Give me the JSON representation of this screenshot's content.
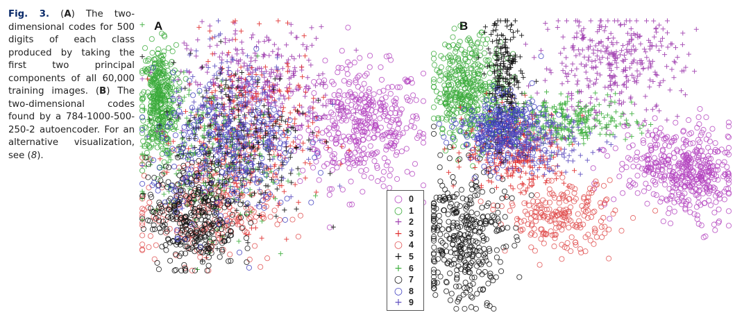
{
  "caption": {
    "label": "Fig. 3.",
    "segments": [
      {
        "t": "(",
        "s": "n"
      },
      {
        "t": "A",
        "s": "b"
      },
      {
        "t": ") The two-dimensional codes for 500 digits of each class produced by taking the first two principal components of all 60,000 training images. (",
        "s": "n"
      },
      {
        "t": "B",
        "s": "b"
      },
      {
        "t": ") The two-dimensional codes found by a 784-1000-500-250-2 autoencoder. For an alternative visualization, see (",
        "s": "n"
      },
      {
        "t": "8",
        "s": "i"
      },
      {
        "t": ").",
        "s": "n"
      }
    ]
  },
  "panels": {
    "a_label": "A",
    "b_label": "B"
  },
  "legend": {
    "items": [
      {
        "label": "0",
        "marker": "circle",
        "color": "#b444c0"
      },
      {
        "label": "1",
        "marker": "circle",
        "color": "#3aaa3a"
      },
      {
        "label": "2",
        "marker": "plus",
        "color": "#a040b0"
      },
      {
        "label": "3",
        "marker": "plus",
        "color": "#e03030"
      },
      {
        "label": "4",
        "marker": "circle",
        "color": "#e05050"
      },
      {
        "label": "5",
        "marker": "plus",
        "color": "#111111"
      },
      {
        "label": "6",
        "marker": "plus",
        "color": "#40b040"
      },
      {
        "label": "7",
        "marker": "circle",
        "color": "#111111"
      },
      {
        "label": "8",
        "marker": "circle",
        "color": "#4040c0"
      },
      {
        "label": "9",
        "marker": "plus",
        "color": "#6050c0"
      }
    ]
  },
  "chart_data": [
    {
      "type": "scatter",
      "panel": "A",
      "title": "",
      "xlabel": "",
      "ylabel": "",
      "grid": false,
      "series": [
        {
          "name": "0",
          "clusters": [
            {
              "cx": 0.78,
              "cy": 0.58,
              "sx": 0.11,
              "sy": 0.12,
              "n": 420
            }
          ]
        },
        {
          "name": "1",
          "clusters": [
            {
              "cx": 0.06,
              "cy": 0.68,
              "sx": 0.03,
              "sy": 0.11,
              "n": 380
            }
          ]
        },
        {
          "name": "2",
          "clusters": [
            {
              "cx": 0.42,
              "cy": 0.75,
              "sx": 0.13,
              "sy": 0.11,
              "n": 300
            }
          ]
        },
        {
          "name": "3",
          "clusters": [
            {
              "cx": 0.38,
              "cy": 0.55,
              "sx": 0.12,
              "sy": 0.17,
              "n": 320
            }
          ]
        },
        {
          "name": "4",
          "clusters": [
            {
              "cx": 0.22,
              "cy": 0.25,
              "sx": 0.12,
              "sy": 0.11,
              "n": 260
            }
          ]
        },
        {
          "name": "5",
          "clusters": [
            {
              "cx": 0.34,
              "cy": 0.52,
              "sx": 0.12,
              "sy": 0.16,
              "n": 300
            }
          ]
        },
        {
          "name": "6",
          "clusters": [
            {
              "cx": 0.22,
              "cy": 0.45,
              "sx": 0.12,
              "sy": 0.15,
              "n": 240
            }
          ]
        },
        {
          "name": "7",
          "clusters": [
            {
              "cx": 0.18,
              "cy": 0.22,
              "sx": 0.08,
              "sy": 0.11,
              "n": 340
            }
          ]
        },
        {
          "name": "8",
          "clusters": [
            {
              "cx": 0.3,
              "cy": 0.48,
              "sx": 0.13,
              "sy": 0.15,
              "n": 260
            }
          ]
        },
        {
          "name": "9",
          "clusters": [
            {
              "cx": 0.32,
              "cy": 0.58,
              "sx": 0.12,
              "sy": 0.14,
              "n": 240
            }
          ]
        }
      ]
    },
    {
      "type": "scatter",
      "panel": "B",
      "title": "",
      "xlabel": "",
      "ylabel": "",
      "grid": false,
      "series": [
        {
          "name": "0",
          "clusters": [
            {
              "cx": 0.82,
              "cy": 0.5,
              "sx": 0.1,
              "sy": 0.07,
              "n": 320
            },
            {
              "cx": 0.9,
              "cy": 0.42,
              "sx": 0.05,
              "sy": 0.07,
              "n": 140
            }
          ]
        },
        {
          "name": "1",
          "clusters": [
            {
              "cx": 0.12,
              "cy": 0.76,
              "sx": 0.06,
              "sy": 0.09,
              "n": 420
            }
          ]
        },
        {
          "name": "2",
          "clusters": [
            {
              "cx": 0.6,
              "cy": 0.85,
              "sx": 0.12,
              "sy": 0.09,
              "n": 340
            }
          ]
        },
        {
          "name": "3",
          "clusters": [
            {
              "cx": 0.28,
              "cy": 0.55,
              "sx": 0.09,
              "sy": 0.07,
              "n": 300
            }
          ]
        },
        {
          "name": "4",
          "clusters": [
            {
              "cx": 0.43,
              "cy": 0.32,
              "sx": 0.09,
              "sy": 0.06,
              "n": 220
            }
          ]
        },
        {
          "name": "5",
          "clusters": [
            {
              "cx": 0.24,
              "cy": 0.78,
              "sx": 0.03,
              "sy": 0.12,
              "n": 240
            }
          ]
        },
        {
          "name": "6",
          "clusters": [
            {
              "cx": 0.44,
              "cy": 0.65,
              "sx": 0.12,
              "sy": 0.04,
              "n": 300
            }
          ]
        },
        {
          "name": "7",
          "clusters": [
            {
              "cx": 0.1,
              "cy": 0.25,
              "sx": 0.07,
              "sy": 0.12,
              "n": 360
            }
          ]
        },
        {
          "name": "8",
          "clusters": [
            {
              "cx": 0.23,
              "cy": 0.62,
              "sx": 0.07,
              "sy": 0.06,
              "n": 300
            }
          ]
        },
        {
          "name": "9",
          "clusters": [
            {
              "cx": 0.34,
              "cy": 0.58,
              "sx": 0.1,
              "sy": 0.05,
              "n": 180
            }
          ]
        }
      ]
    }
  ]
}
